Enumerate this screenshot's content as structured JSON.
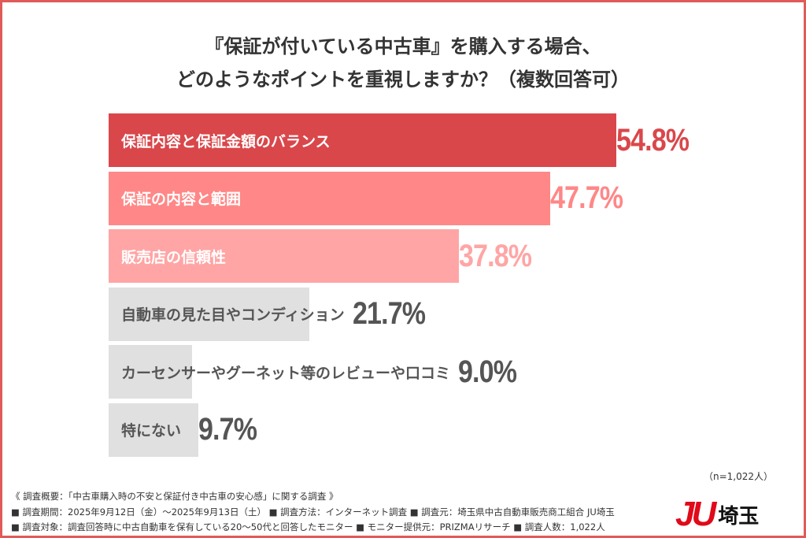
{
  "title_lines": [
    "『保証が付いている中古車』を購入する場合、",
    "どのようなポイントを重視しますか？（複数回答可）"
  ],
  "chart_data": {
    "type": "bar",
    "orientation": "horizontal",
    "title": "『保証が付いている中古車』を購入する場合、どのようなポイントを重視しますか？（複数回答可）",
    "categories": [
      "保証内容と保証金額のバランス",
      "保証の内容と範囲",
      "販売店の信頼性",
      "自動車の見た目やコンディション",
      "カーセンサーやグーネット等のレビューや口コミ",
      "特にない"
    ],
    "values": [
      54.8,
      47.7,
      37.8,
      21.7,
      9.0,
      9.7
    ],
    "value_labels": [
      "54.8%",
      "47.7%",
      "37.8%",
      "21.7%",
      "9.0%",
      "9.7%"
    ],
    "bar_colors": [
      "#d9474b",
      "#ff8787",
      "#ffa5a5",
      "#e0e0e0",
      "#e0e0e0",
      "#e0e0e0"
    ],
    "label_colors": [
      "#ffffff",
      "#ffffff",
      "#ffffff",
      "#555555",
      "#555555",
      "#555555"
    ],
    "value_colors": [
      "#d9474b",
      "#ff8787",
      "#ffa5a5",
      "#555555",
      "#555555",
      "#555555"
    ],
    "grid": false,
    "legend": "none"
  },
  "sample_size": "（n=1,022人）",
  "footer": [
    "《 調査概要：「中古車購入時の不安と保証付き中古車の安心感」に関する調査 》",
    "■ 調査期間：2025年9月12日（金）〜2025年9月13日（土） ■ 調査方法：インターネット調査 ■ 調査元：埼玉県中古自動車販売商工組合 JU埼玉",
    "■ 調査対象：調査回答時に中古自動車を保有している20〜50代と回答したモニター ■ モニター提供元：PRIZMAリサーチ ■ 調査人数：1,022人"
  ],
  "logo": {
    "mark": "JU",
    "text": "埼玉"
  },
  "frame_color": "#e05a5a"
}
